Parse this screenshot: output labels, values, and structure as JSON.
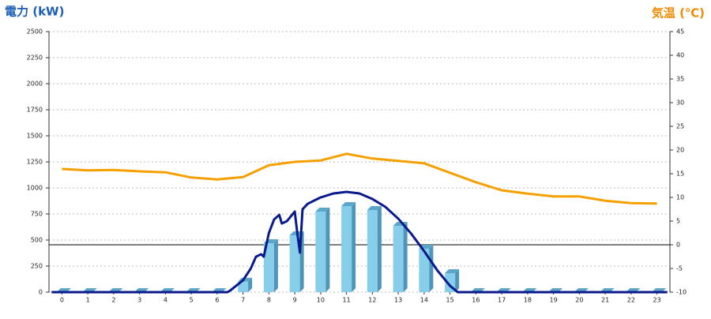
{
  "chart_data": {
    "type": "combo",
    "y_title": "電力 (kW)",
    "y2_title": "気温 (℃)",
    "categories": [
      "0",
      "1",
      "2",
      "3",
      "4",
      "5",
      "6",
      "7",
      "8",
      "9",
      "10",
      "11",
      "12",
      "13",
      "14",
      "15",
      "16",
      "17",
      "18",
      "19",
      "20",
      "21",
      "22",
      "23"
    ],
    "ylim": [
      0,
      2500
    ],
    "yticks": [
      0,
      250,
      500,
      750,
      1000,
      1250,
      1500,
      1750,
      2000,
      2250,
      2500
    ],
    "y2lim": [
      -10,
      45
    ],
    "y2ticks": [
      -10,
      -5,
      0,
      5,
      10,
      15,
      20,
      25,
      30,
      35,
      40,
      45
    ],
    "grid": true,
    "series": [
      {
        "type": "bar",
        "color": "#87ceeb",
        "values": [
          0,
          0,
          0,
          0,
          0,
          0,
          0,
          100,
          470,
          545,
          773,
          826,
          788,
          636,
          417,
          182,
          0,
          0,
          0,
          0,
          0,
          0,
          0,
          0
        ]
      },
      {
        "type": "line",
        "color": "#0a1a8c",
        "x": [
          -0.4,
          6.4,
          6.5,
          7.0,
          7.3,
          7.5,
          7.7,
          7.8,
          8.0,
          8.2,
          8.4,
          8.5,
          8.7,
          9.0,
          9.1,
          9.2,
          9.3,
          9.5,
          10,
          10.5,
          11,
          11.5,
          12,
          12.5,
          13,
          13.5,
          14,
          14.5,
          15,
          15.3,
          23.4
        ],
        "values": [
          0,
          0,
          15,
          114,
          227,
          340,
          364,
          340,
          568,
          697,
          742,
          659,
          682,
          773,
          561,
          379,
          795,
          848,
          909,
          947,
          962,
          947,
          894,
          818,
          705,
          561,
          394,
          212,
          61,
          0,
          0
        ]
      },
      {
        "type": "line",
        "axis": "y2",
        "color": "#f5a000",
        "values": [
          16,
          15.7,
          15.8,
          15.5,
          15.3,
          14.2,
          13.8,
          14.3,
          16.8,
          17.5,
          17.8,
          19.2,
          18.2,
          17.7,
          17.2,
          15.2,
          13.2,
          11.5,
          10.8,
          10.2,
          10.2,
          9.3,
          8.8,
          8.7
        ]
      }
    ]
  }
}
